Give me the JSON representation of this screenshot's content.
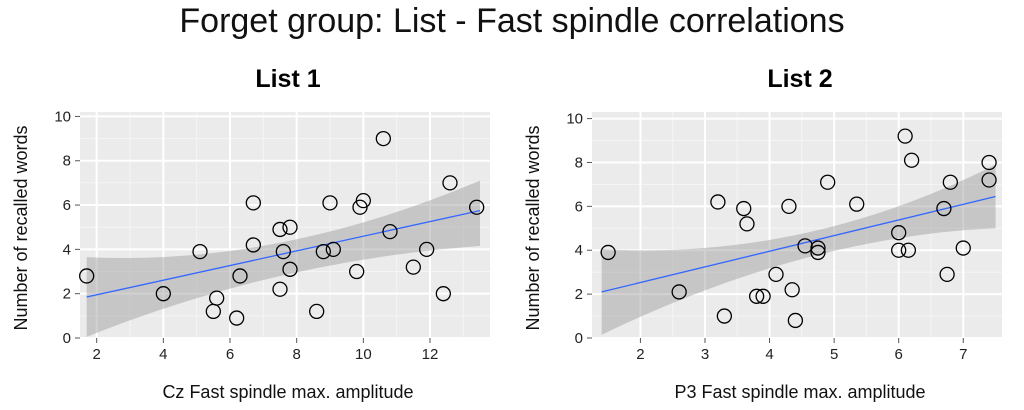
{
  "figure": {
    "title": "Forget group: List - Fast spindle correlations"
  },
  "chart_data": [
    {
      "type": "scatter",
      "title": "List 1",
      "xlabel": "Cz Fast spindle max. amplitude",
      "ylabel": "Number of recalled words",
      "xlim": [
        1.5,
        13.8
      ],
      "ylim": [
        0,
        10.2
      ],
      "xticks": [
        2,
        4,
        6,
        8,
        10,
        12,
        14
      ],
      "yticks": [
        0,
        2,
        4,
        6,
        8,
        10
      ],
      "grid": true,
      "regression": {
        "x": [
          1.7,
          13.5
        ],
        "y": [
          1.85,
          5.75
        ],
        "ci_low": [
          0.05,
          4.15
        ],
        "ci_high": [
          3.65,
          7.1
        ],
        "ci_x": [
          1.7,
          7.4,
          13.5
        ],
        "ci_low_mid": 2.8,
        "ci_high_mid": 4.3
      },
      "points": [
        [
          1.7,
          2.8
        ],
        [
          4.0,
          2.0
        ],
        [
          5.1,
          3.9
        ],
        [
          5.5,
          1.2
        ],
        [
          5.6,
          1.8
        ],
        [
          6.2,
          0.9
        ],
        [
          6.3,
          2.8
        ],
        [
          6.7,
          4.2
        ],
        [
          6.7,
          6.1
        ],
        [
          7.5,
          2.2
        ],
        [
          7.5,
          4.9
        ],
        [
          7.6,
          3.9
        ],
        [
          7.8,
          5.0
        ],
        [
          7.8,
          3.1
        ],
        [
          8.6,
          1.2
        ],
        [
          8.8,
          3.9
        ],
        [
          9.0,
          6.1
        ],
        [
          9.1,
          4.0
        ],
        [
          9.8,
          3.0
        ],
        [
          9.9,
          5.9
        ],
        [
          10.0,
          6.2
        ],
        [
          10.6,
          9.0
        ],
        [
          10.8,
          4.8
        ],
        [
          11.5,
          3.2
        ],
        [
          11.9,
          4.0
        ],
        [
          12.4,
          2.0
        ],
        [
          12.6,
          7.0
        ],
        [
          13.4,
          5.9
        ]
      ]
    },
    {
      "type": "scatter",
      "title": "List 2",
      "xlabel": "P3 Fast spindle max. amplitude",
      "ylabel": "Number of recalled words",
      "xlim": [
        1.25,
        7.6
      ],
      "ylim": [
        0,
        10.3
      ],
      "xticks": [
        2,
        3,
        4,
        5,
        6,
        7
      ],
      "yticks": [
        0,
        2,
        4,
        6,
        8,
        10
      ],
      "grid": true,
      "regression": {
        "x": [
          1.4,
          7.5
        ],
        "y": [
          2.1,
          6.45
        ],
        "ci_low": [
          0.15,
          5.0
        ],
        "ci_high": [
          4.05,
          7.9
        ],
        "ci_x": [
          1.4,
          4.55,
          7.5
        ],
        "ci_low_mid": 3.6,
        "ci_high_mid": 4.75
      },
      "points": [
        [
          1.5,
          3.9
        ],
        [
          2.6,
          2.1
        ],
        [
          3.2,
          6.2
        ],
        [
          3.3,
          1.0
        ],
        [
          3.6,
          5.9
        ],
        [
          3.65,
          5.2
        ],
        [
          3.8,
          1.9
        ],
        [
          3.9,
          1.9
        ],
        [
          4.1,
          2.9
        ],
        [
          4.3,
          6.0
        ],
        [
          4.35,
          2.2
        ],
        [
          4.4,
          0.8
        ],
        [
          4.55,
          4.2
        ],
        [
          4.75,
          4.1
        ],
        [
          4.75,
          3.9
        ],
        [
          4.9,
          7.1
        ],
        [
          5.35,
          6.1
        ],
        [
          6.0,
          4.8
        ],
        [
          6.0,
          4.0
        ],
        [
          6.1,
          9.2
        ],
        [
          6.15,
          4.0
        ],
        [
          6.2,
          8.1
        ],
        [
          6.7,
          5.9
        ],
        [
          6.75,
          2.9
        ],
        [
          6.8,
          7.1
        ],
        [
          7.0,
          4.1
        ],
        [
          7.4,
          8.0
        ],
        [
          7.4,
          7.2
        ]
      ]
    }
  ]
}
